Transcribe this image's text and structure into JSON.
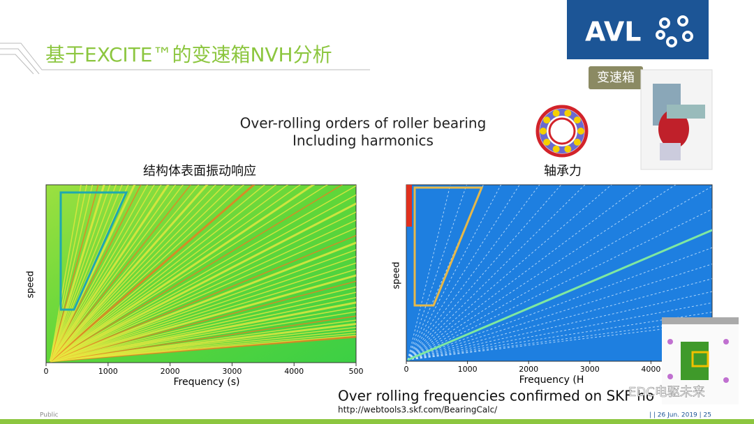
{
  "header": {
    "title": "基于EXCITE™的变速箱NVH分析",
    "logo": "AVL",
    "tag": "变速箱"
  },
  "subtitle": [
    "Over-rolling orders of roller bearing",
    "Including harmonics"
  ],
  "plots": [
    {
      "title": "结构体表面振动响应",
      "xticks": [
        "0",
        "1000",
        "2000",
        "3000",
        "4000",
        "500"
      ],
      "xlabel": "Frequency (s)",
      "ylabel": "speed"
    },
    {
      "title": "轴承力",
      "xticks": [
        "0",
        "1000",
        "2000",
        "3000",
        "4000"
      ],
      "xlabel": "Frequency (H",
      "ylabel": "speed"
    }
  ],
  "note": "Over rolling frequencies confirmed on SKF ho",
  "url": "http://webtools3.skf.com/BearingCalc/",
  "footer": {
    "left": "Public",
    "right": "| | 26 Jun. 2019 | 25"
  },
  "watermark": "EDC电驱未来"
}
